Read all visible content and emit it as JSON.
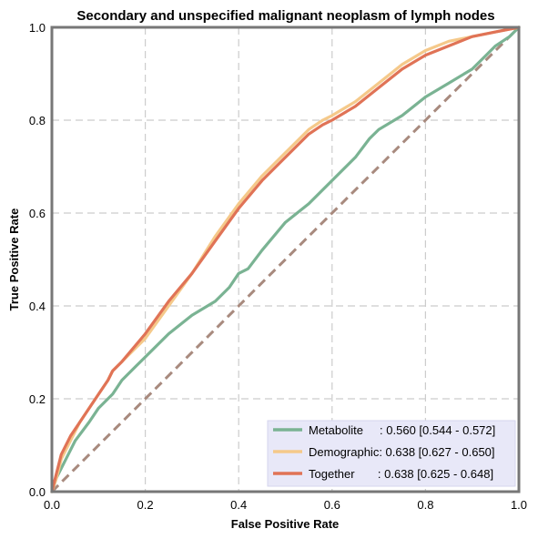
{
  "chart_data": {
    "type": "line",
    "title": "Secondary and unspecified malignant neoplasm of lymph nodes",
    "xlabel": "False Positive Rate",
    "ylabel": "True Positive Rate",
    "xlim": [
      0,
      1
    ],
    "ylim": [
      0,
      1
    ],
    "x_ticks": [
      "0.0",
      "0.2",
      "0.4",
      "0.6",
      "0.8",
      "1.0"
    ],
    "y_ticks": [
      "0.0",
      "0.2",
      "0.4",
      "0.6",
      "0.8",
      "1.0"
    ],
    "grid": true,
    "legend_position": "bottom-right",
    "reference_line": {
      "x": [
        0,
        1
      ],
      "y": [
        0,
        1
      ],
      "color": "#a88a7e",
      "style": "dashed"
    },
    "series": [
      {
        "name": "Metabolite",
        "legend_label": "Metabolite     : 0.560 [0.544 - 0.572]",
        "color": "#7ab393",
        "x": [
          0,
          0.01,
          0.03,
          0.05,
          0.08,
          0.1,
          0.13,
          0.15,
          0.18,
          0.2,
          0.25,
          0.3,
          0.35,
          0.38,
          0.4,
          0.42,
          0.45,
          0.5,
          0.55,
          0.6,
          0.65,
          0.68,
          0.7,
          0.75,
          0.8,
          0.85,
          0.9,
          0.93,
          0.95,
          0.98,
          1.0
        ],
        "y": [
          0,
          0.03,
          0.07,
          0.11,
          0.15,
          0.18,
          0.21,
          0.24,
          0.27,
          0.29,
          0.34,
          0.38,
          0.41,
          0.44,
          0.47,
          0.48,
          0.52,
          0.58,
          0.62,
          0.67,
          0.72,
          0.76,
          0.78,
          0.81,
          0.85,
          0.88,
          0.91,
          0.94,
          0.96,
          0.98,
          1.0
        ]
      },
      {
        "name": "Demographic",
        "legend_label": "Demographic: 0.638 [0.627 - 0.650]",
        "color": "#f5c98a",
        "x": [
          0,
          0.01,
          0.02,
          0.04,
          0.06,
          0.08,
          0.1,
          0.12,
          0.13,
          0.15,
          0.2,
          0.25,
          0.3,
          0.35,
          0.4,
          0.45,
          0.5,
          0.55,
          0.58,
          0.6,
          0.65,
          0.7,
          0.75,
          0.8,
          0.85,
          0.9,
          0.95,
          1.0
        ],
        "y": [
          0,
          0.03,
          0.07,
          0.11,
          0.15,
          0.18,
          0.21,
          0.24,
          0.26,
          0.28,
          0.33,
          0.4,
          0.47,
          0.55,
          0.62,
          0.68,
          0.73,
          0.78,
          0.8,
          0.81,
          0.84,
          0.88,
          0.92,
          0.95,
          0.97,
          0.98,
          0.99,
          1.0
        ]
      },
      {
        "name": "Together",
        "legend_label": "Together       : 0.638 [0.625 - 0.648]",
        "color": "#e07356",
        "x": [
          0,
          0.01,
          0.02,
          0.04,
          0.06,
          0.08,
          0.1,
          0.12,
          0.13,
          0.15,
          0.2,
          0.25,
          0.3,
          0.35,
          0.4,
          0.45,
          0.5,
          0.55,
          0.58,
          0.6,
          0.65,
          0.7,
          0.75,
          0.8,
          0.85,
          0.9,
          0.95,
          1.0
        ],
        "y": [
          0,
          0.04,
          0.08,
          0.12,
          0.15,
          0.18,
          0.21,
          0.24,
          0.26,
          0.28,
          0.34,
          0.41,
          0.47,
          0.54,
          0.61,
          0.67,
          0.72,
          0.77,
          0.79,
          0.8,
          0.83,
          0.87,
          0.91,
          0.94,
          0.96,
          0.98,
          0.99,
          1.0
        ]
      }
    ]
  }
}
